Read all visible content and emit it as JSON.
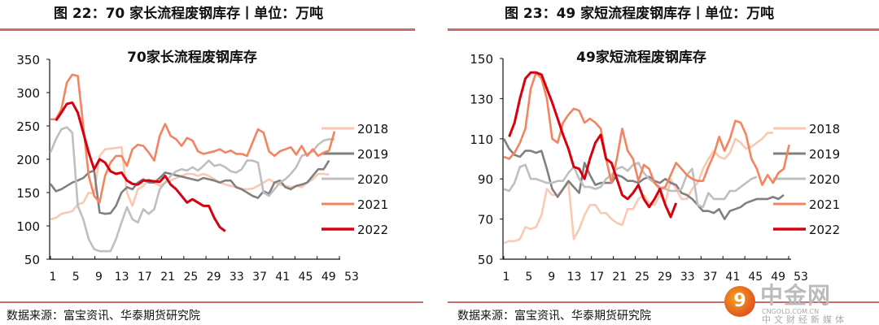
{
  "figures": [
    {
      "caption": "图 22：70 家长流程废钢库存丨单位：万吨",
      "source": "数据来源：富宝资讯、华泰期货研究院"
    },
    {
      "caption": "图 23：49 家短流程废钢库存丨单位：万吨",
      "source": "数据来源：富宝资讯、华泰期货研究院"
    }
  ],
  "watermark": {
    "name": "中金网",
    "domain": "CNGOLD.COM.CN",
    "tagline": "中文财经新媒体"
  },
  "chart_data": [
    {
      "type": "line",
      "title": "70家长流程废钢库存",
      "ylim": [
        50,
        350
      ],
      "yticks": [
        "50",
        "100",
        "150",
        "200",
        "250",
        "300",
        "350"
      ],
      "xticks": [
        "1",
        "5",
        "9",
        "13",
        "17",
        "21",
        "25",
        "29",
        "33",
        "37",
        "41",
        "45",
        "49",
        "53"
      ],
      "xrange": [
        1,
        53
      ],
      "legend": "right",
      "series": [
        {
          "name": "2018",
          "color": "#f9c9b4",
          "start": 1,
          "values": [
            110,
            112,
            118,
            120,
            122,
            132,
            135,
            150,
            148,
            205,
            215,
            216,
            217,
            218,
            150,
            130,
            155,
            160,
            170,
            165,
            160,
            165,
            168,
            172,
            175,
            178,
            178,
            175,
            178,
            175,
            170,
            165,
            162,
            160,
            158,
            155,
            155,
            156,
            160,
            165,
            170,
            165,
            162,
            160,
            158,
            160,
            158,
            165,
            170,
            178,
            178,
            177
          ]
        },
        {
          "name": "2019",
          "color": "#808080",
          "start": 1,
          "values": [
            163,
            152,
            155,
            160,
            165,
            168,
            172,
            180,
            183,
            120,
            118,
            119,
            130,
            150,
            158,
            155,
            165,
            170,
            165,
            165,
            172,
            180,
            178,
            176,
            174,
            172,
            170,
            168,
            172,
            170,
            168,
            165,
            168,
            168,
            158,
            155,
            150,
            145,
            142,
            152,
            148,
            165,
            168,
            158,
            155,
            160,
            162,
            165,
            175,
            185,
            185,
            198
          ]
        },
        {
          "name": "2020",
          "color": "#bfbfbf",
          "start": 1,
          "values": [
            210,
            230,
            245,
            248,
            240,
            130,
            110,
            80,
            65,
            62,
            62,
            62,
            80,
            105,
            128,
            110,
            105,
            125,
            118,
            125,
            155,
            165,
            175,
            182,
            185,
            183,
            188,
            183,
            190,
            198,
            190,
            192,
            188,
            182,
            180,
            185,
            198,
            198,
            195,
            150,
            145,
            155,
            165,
            170,
            178,
            188,
            205,
            208,
            212,
            222,
            228,
            230,
            230
          ]
        },
        {
          "name": "2021",
          "color": "#f4845f",
          "start": 1,
          "values": [
            260,
            260,
            275,
            315,
            327,
            325,
            250,
            175,
            145,
            135,
            175,
            195,
            205,
            205,
            190,
            215,
            222,
            220,
            210,
            198,
            235,
            253,
            235,
            230,
            220,
            232,
            228,
            212,
            208,
            210,
            212,
            215,
            210,
            213,
            208,
            208,
            205,
            225,
            245,
            240,
            212,
            205,
            212,
            215,
            218,
            207,
            220,
            205,
            215,
            205,
            210,
            213,
            242
          ]
        },
        {
          "name": "2022",
          "color": "#d7000f",
          "start": 2,
          "values": [
            258,
            270,
            283,
            285,
            270,
            240,
            210,
            185,
            200,
            195,
            182,
            178,
            180,
            168,
            163,
            162,
            168,
            168,
            167,
            166,
            175,
            162,
            155,
            145,
            135,
            140,
            135,
            130,
            130,
            112,
            98,
            92
          ]
        }
      ]
    },
    {
      "type": "line",
      "title": "49家短流程废钢库存",
      "ylim": [
        50,
        150
      ],
      "yticks": [
        "50",
        "70",
        "90",
        "110",
        "130",
        "150"
      ],
      "xticks": [
        "1",
        "5",
        "9",
        "13",
        "17",
        "21",
        "25",
        "29",
        "33",
        "37",
        "41",
        "45",
        "49",
        "53"
      ],
      "xrange": [
        1,
        53
      ],
      "legend": "right",
      "series": [
        {
          "name": "2018",
          "color": "#f9c9b4",
          "start": 1,
          "values": [
            58,
            59,
            59,
            60,
            66,
            65,
            66,
            72,
            85,
            82,
            82,
            85,
            88,
            60,
            65,
            72,
            77,
            77,
            73,
            73,
            70,
            68,
            67,
            75,
            75,
            80,
            82,
            78,
            77,
            82,
            78,
            90,
            85,
            80,
            80,
            85,
            88,
            95,
            100,
            104,
            101,
            100,
            103,
            110,
            108,
            105,
            106,
            108,
            110,
            113,
            113
          ]
        },
        {
          "name": "2019",
          "color": "#808080",
          "start": 1,
          "values": [
            110,
            105,
            102,
            101,
            104,
            104,
            103,
            104,
            95,
            85,
            81,
            85,
            89,
            86,
            83,
            98,
            92,
            87,
            88,
            88,
            88,
            92,
            91,
            89,
            89,
            88,
            90,
            91,
            89,
            88,
            90,
            88,
            87,
            83,
            82,
            80,
            77,
            74,
            74,
            73,
            75,
            70,
            74,
            75,
            76,
            78,
            79,
            80,
            80,
            80,
            81,
            80,
            82
          ]
        },
        {
          "name": "2020",
          "color": "#bfbfbf",
          "start": 1,
          "values": [
            85,
            84,
            88,
            96,
            97,
            90,
            90,
            89,
            88,
            88,
            89,
            89,
            93,
            96,
            90,
            86,
            86,
            85,
            86,
            90,
            92,
            95,
            96,
            94,
            97,
            98,
            93,
            90,
            88,
            86,
            85,
            84,
            84,
            85,
            92,
            95,
            77,
            76,
            83,
            80,
            80,
            80,
            84,
            84,
            86,
            88,
            90,
            91
          ]
        },
        {
          "name": "2021",
          "color": "#f4845f",
          "start": 1,
          "values": [
            101,
            100,
            103,
            108,
            115,
            135,
            143,
            140,
            130,
            110,
            108,
            118,
            122,
            125,
            124,
            118,
            120,
            118,
            115,
            100,
            88,
            100,
            115,
            104,
            100,
            89,
            97,
            95,
            88,
            85,
            86,
            92,
            98,
            95,
            92,
            90,
            89,
            89,
            96,
            102,
            111,
            104,
            110,
            119,
            118,
            112,
            100,
            95,
            87,
            92,
            88,
            93,
            95,
            107
          ]
        },
        {
          "name": "2022",
          "color": "#d7000f",
          "start": 2,
          "values": [
            111,
            118,
            130,
            140,
            143,
            143,
            142,
            135,
            128,
            120,
            112,
            105,
            96,
            95,
            90,
            100,
            108,
            112,
            100,
            98,
            90,
            82,
            80,
            83,
            87,
            80,
            76,
            80,
            85,
            77,
            71,
            78
          ]
        }
      ]
    }
  ]
}
